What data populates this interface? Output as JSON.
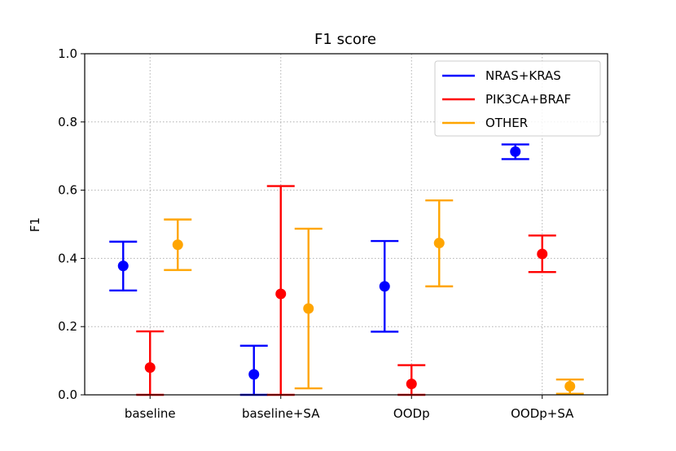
{
  "chart_data": {
    "type": "scatter",
    "title": "F1 score",
    "xlabel": "",
    "ylabel": "F1",
    "ylim": [
      0,
      1.0
    ],
    "yticks": [
      "0.0",
      "0.2",
      "0.4",
      "0.6",
      "0.8",
      "1.0"
    ],
    "categories": [
      "baseline",
      "baseline+SA",
      "OODp",
      "OODp+SA"
    ],
    "grid": true,
    "legend_position": "top-right",
    "series": [
      {
        "name": "NRAS+KRAS",
        "color": "#0000ff",
        "values": [
          0.378,
          0.06,
          0.318,
          0.713
        ],
        "err_low": [
          0.306,
          0.0,
          0.185,
          0.691
        ],
        "err_high": [
          0.449,
          0.144,
          0.451,
          0.734
        ]
      },
      {
        "name": "PIK3CA+BRAF",
        "color": "#ff0000",
        "values": [
          0.08,
          0.296,
          0.032,
          0.413
        ],
        "err_low": [
          0.0,
          0.0,
          0.0,
          0.36
        ],
        "err_high": [
          0.186,
          0.612,
          0.087,
          0.467
        ]
      },
      {
        "name": "OTHER",
        "color": "#ffa500",
        "values": [
          0.44,
          0.253,
          0.445,
          0.025
        ],
        "err_low": [
          0.366,
          0.019,
          0.318,
          0.003
        ],
        "err_high": [
          0.514,
          0.487,
          0.57,
          0.045
        ]
      }
    ]
  }
}
